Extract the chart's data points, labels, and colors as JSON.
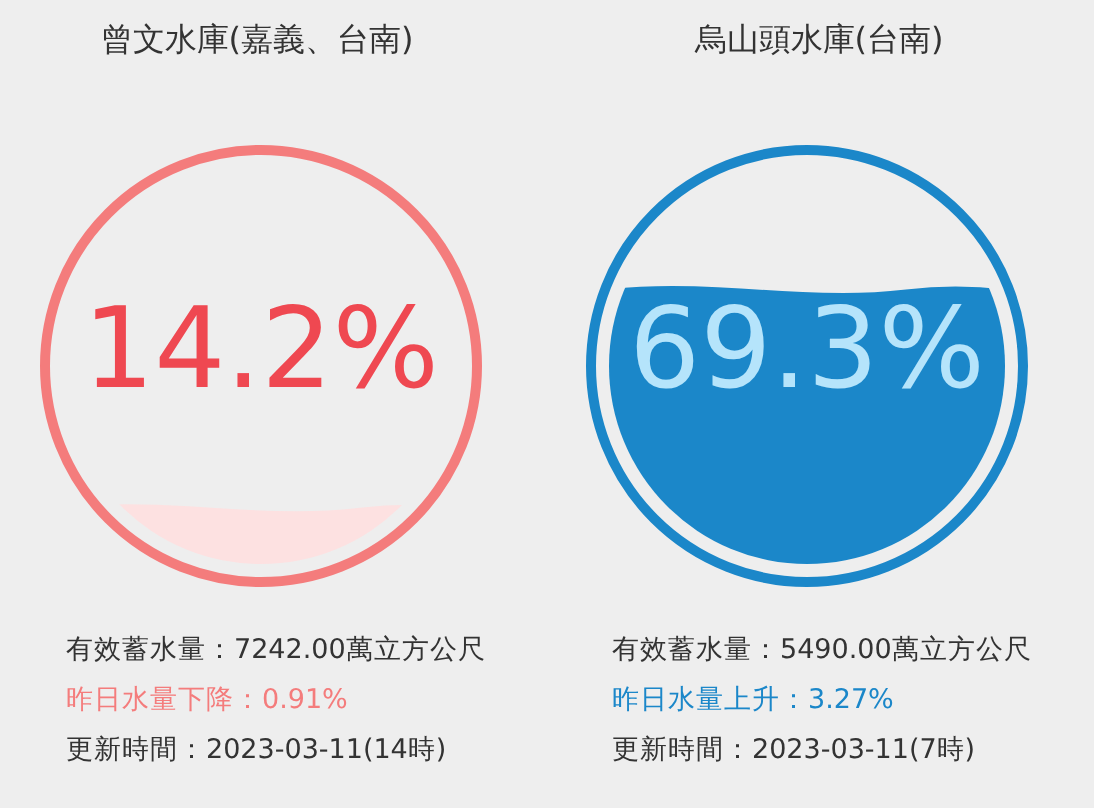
{
  "chart_data": [
    {
      "type": "other",
      "title": "曾文水庫(嘉義、台南)",
      "color": "#f47c7c",
      "series": [
        {
          "color": "#fde1e1",
          "values": [
            14.2
          ],
          "value_labels": [
            "14.2%"
          ]
        }
      ],
      "annotations": [
        "有效蓄水量：7242.00萬立方公尺",
        "昨日水量下降：0.91%",
        "更新時間：2023-03-11(14時)"
      ]
    },
    {
      "type": "other",
      "title": "烏山頭水庫(台南)",
      "color": "#1b87c9",
      "series": [
        {
          "color": "#1b87c9",
          "values": [
            69.3
          ],
          "value_labels": [
            "69.3%"
          ]
        }
      ],
      "annotations": [
        "有效蓄水量：5490.00萬立方公尺",
        "昨日水量上升：3.27%",
        "更新時間：2023-03-11(7時)"
      ]
    }
  ]
}
